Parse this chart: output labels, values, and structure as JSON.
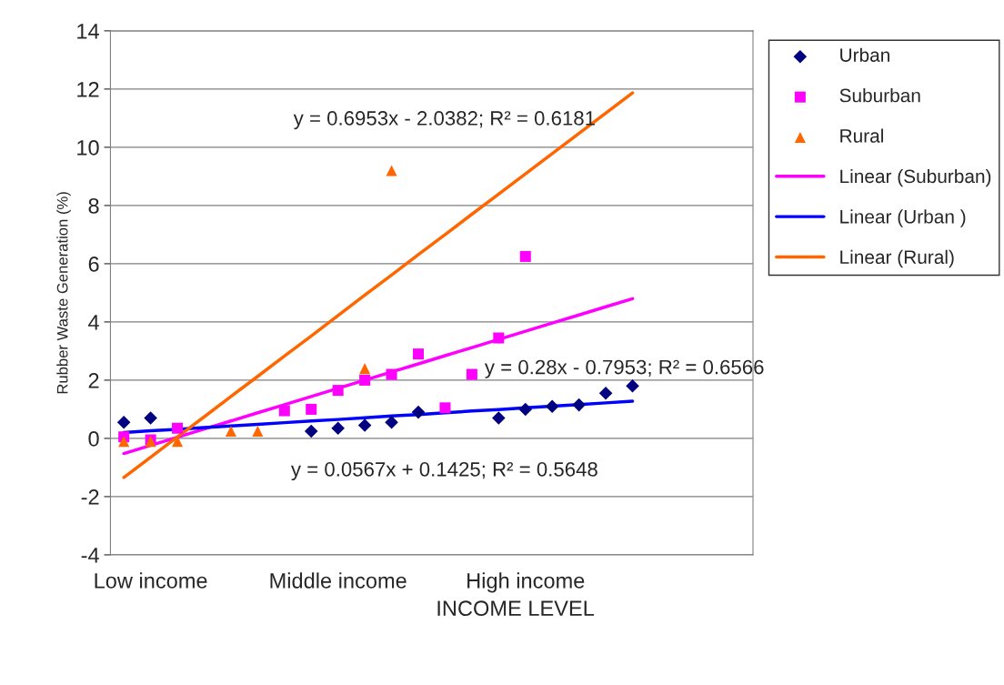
{
  "chart_data": {
    "type": "scatter",
    "ylabel": "Rubber Waste Generation (%)",
    "xlabel": "INCOME LEVEL",
    "categories": [
      null,
      "Low income",
      null,
      null,
      null,
      null,
      null,
      null,
      "Middle income",
      null,
      null,
      null,
      null,
      null,
      null,
      "High income",
      null,
      null,
      null,
      null,
      null,
      null,
      null,
      null
    ],
    "ylim": [
      -4,
      14
    ],
    "yticks": [
      -4,
      -2,
      0,
      2,
      4,
      6,
      8,
      10,
      12,
      14
    ],
    "grid": "y",
    "legend": "right",
    "series": [
      {
        "name": "Urban",
        "marker": "diamond",
        "color": "#000080",
        "values": [
          0.55,
          0.7,
          null,
          null,
          null,
          null,
          null,
          0.25,
          0.35,
          0.45,
          0.55,
          0.9,
          null,
          null,
          0.7,
          1.0,
          1.1,
          1.15,
          1.55,
          1.8,
          null,
          null,
          null,
          null
        ]
      },
      {
        "name": "Suburban",
        "marker": "square",
        "color": "#ff00ff",
        "values": [
          0.05,
          -0.05,
          0.35,
          null,
          null,
          null,
          0.95,
          1.0,
          1.65,
          2.0,
          2.2,
          2.9,
          1.05,
          2.2,
          3.45,
          6.25,
          null,
          null,
          null,
          null,
          null,
          null,
          null,
          null
        ]
      },
      {
        "name": "Rural",
        "marker": "triangle",
        "color": "#ff6600",
        "values": [
          -0.1,
          -0.1,
          -0.1,
          null,
          0.25,
          0.25,
          null,
          null,
          null,
          2.4,
          9.2,
          null,
          null,
          null,
          null,
          null,
          null,
          null,
          null,
          null,
          null,
          null,
          null,
          null
        ]
      },
      {
        "name": "Linear (Suburban)",
        "type": "line",
        "color": "#ff00ff",
        "values": [
          -0.52,
          -0.24,
          0.04,
          0.32,
          0.6,
          0.88,
          1.16,
          1.44,
          1.72,
          2.0,
          2.28,
          2.56,
          2.84,
          3.12,
          3.4,
          3.68,
          3.96,
          4.24,
          4.52,
          4.8,
          null,
          null,
          null,
          null
        ]
      },
      {
        "name": "Linear (Urban )",
        "type": "line",
        "color": "#0000ff",
        "values": [
          0.2,
          0.26,
          0.31,
          0.37,
          0.43,
          0.48,
          0.54,
          0.6,
          0.65,
          0.71,
          0.77,
          0.82,
          0.88,
          0.94,
          0.99,
          1.05,
          1.11,
          1.16,
          1.22,
          1.28,
          null,
          null,
          null,
          null
        ]
      },
      {
        "name": "Linear (Rural)",
        "type": "line",
        "color": "#ff6600",
        "values": [
          -1.34,
          -0.65,
          0.05,
          0.74,
          1.44,
          2.13,
          2.83,
          3.52,
          4.22,
          4.92,
          5.61,
          6.31,
          7.0,
          7.7,
          8.39,
          9.09,
          9.78,
          10.48,
          11.17,
          11.87,
          null,
          null,
          null,
          null
        ]
      }
    ],
    "annotations": [
      "y = 0.6953x - 2.0382; R² = 0.6181",
      "y = 0.28x - 0.7953; R² = 0.6566",
      "y = 0.0567x + 0.1425; R² = 0.5648"
    ]
  }
}
